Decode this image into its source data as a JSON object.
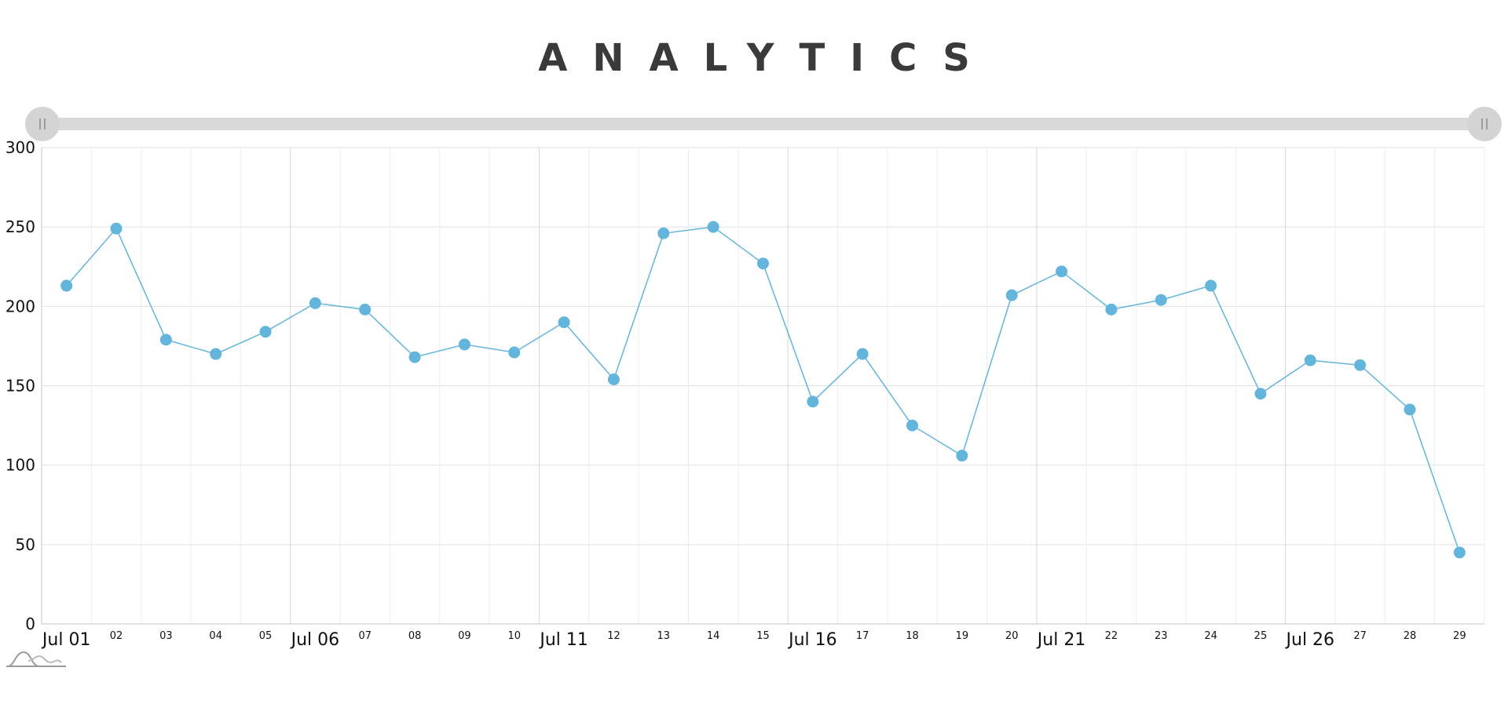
{
  "chart_data": {
    "type": "line",
    "title": "ANALYTICS",
    "xlabel": "",
    "ylabel": "",
    "x": [
      "Jul 01",
      "02",
      "03",
      "04",
      "05",
      "Jul 06",
      "07",
      "08",
      "09",
      "10",
      "Jul 11",
      "12",
      "13",
      "14",
      "15",
      "Jul 16",
      "17",
      "18",
      "19",
      "20",
      "Jul 21",
      "22",
      "23",
      "24",
      "25",
      "Jul 26",
      "27",
      "28",
      "29"
    ],
    "major_x_labels": [
      "Jul 01",
      "Jul 06",
      "Jul 11",
      "Jul 16",
      "Jul 21",
      "Jul 26"
    ],
    "series": [
      {
        "values": [
          213,
          249,
          179,
          170,
          184,
          202,
          198,
          168,
          176,
          171,
          190,
          154,
          246,
          250,
          227,
          140,
          170,
          125,
          106,
          207,
          222,
          198,
          204,
          213,
          145,
          166,
          163,
          135,
          45
        ]
      }
    ],
    "y_ticks": [
      "0",
      "50",
      "100",
      "150",
      "200",
      "250",
      "300"
    ],
    "ylim": [
      0,
      300
    ],
    "grid": true,
    "legend": "none",
    "colors": {
      "series": "#64b5dc",
      "grid": "#e2e2e2",
      "scrollbar_track": "#d9d9d9",
      "scrollbar_grip": "#d4d4d4",
      "title": "#3a3a3a"
    }
  },
  "scrollbar": {
    "start_grip_icon": "grip-lines-icon",
    "end_grip_icon": "grip-lines-icon"
  },
  "brand": {
    "icon": "amcharts-logo-icon"
  }
}
